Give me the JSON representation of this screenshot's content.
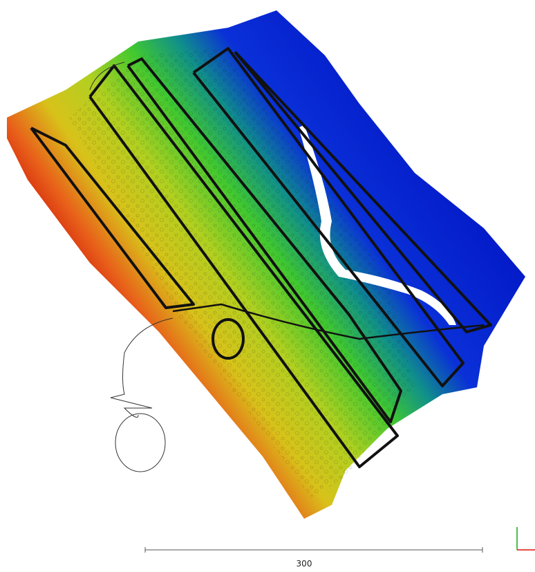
{
  "scale_bar": {
    "label": "300"
  }
}
